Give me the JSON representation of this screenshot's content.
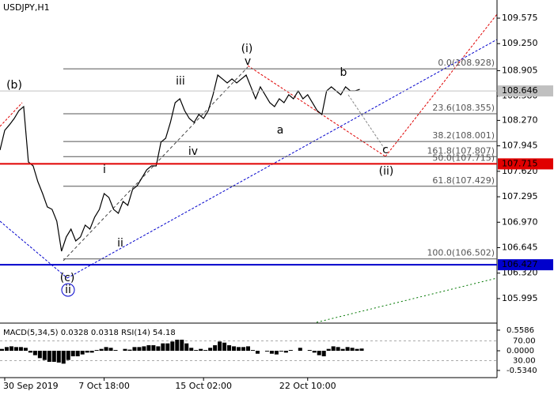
{
  "chart_data": [
    {
      "type": "line",
      "title": "USDJPY,H1",
      "x": [
        0,
        1,
        2,
        3,
        4,
        5,
        6,
        7,
        8,
        9,
        10,
        11,
        12,
        13,
        14,
        15,
        16,
        17,
        18,
        19,
        20,
        21,
        22,
        23,
        24,
        25,
        26,
        27,
        28,
        29,
        30,
        31,
        32,
        33,
        34,
        35,
        36,
        37,
        38,
        39,
        40,
        41,
        42,
        43,
        44,
        45,
        46,
        47,
        48,
        49,
        50,
        51,
        52,
        53,
        54,
        55,
        56,
        57,
        58,
        59,
        60,
        61,
        62,
        63,
        64,
        65,
        66,
        67,
        68,
        69,
        70,
        71,
        72,
        73,
        74,
        75,
        76
      ],
      "values": [
        107.891,
        108.143,
        108.214,
        108.294,
        108.395,
        108.446,
        107.74,
        107.689,
        107.487,
        107.336,
        107.165,
        107.134,
        106.983,
        106.6,
        106.782,
        106.882,
        106.731,
        106.782,
        106.933,
        106.882,
        107.034,
        107.134,
        107.336,
        107.286,
        107.134,
        107.084,
        107.235,
        107.185,
        107.387,
        107.437,
        107.538,
        107.639,
        107.689,
        107.689,
        107.992,
        108.042,
        108.244,
        108.496,
        108.546,
        108.395,
        108.294,
        108.244,
        108.345,
        108.294,
        108.395,
        108.597,
        108.849,
        108.799,
        108.748,
        108.799,
        108.748,
        108.799,
        108.849,
        108.698,
        108.546,
        108.698,
        108.597,
        108.496,
        108.446,
        108.546,
        108.496,
        108.597,
        108.546,
        108.647,
        108.546,
        108.597,
        108.496,
        108.395,
        108.345,
        108.647,
        108.698,
        108.647,
        108.597,
        108.698,
        108.647,
        108.647,
        108.667
      ],
      "color": "#000000",
      "xlim": [
        0,
        105
      ],
      "xticks": [
        {
          "value": 1,
          "label": "30 Sep 2019"
        },
        {
          "value": 22,
          "label": "7 Oct 18:00"
        },
        {
          "value": 43,
          "label": "15 Oct 02:00"
        },
        {
          "value": 65,
          "label": "22 Oct 10:00"
        }
      ],
      "ylim": [
        105.692,
        109.807
      ],
      "yticks": [
        109.575,
        {
          "value": 109.25,
          "label": "109.250"
        },
        108.905,
        {
          "value": 108.58,
          "label": "108.580"
        },
        {
          "value": 108.27,
          "label": "108.270"
        },
        107.945,
        {
          "value": 107.62,
          "label": "107.620"
        },
        107.295,
        {
          "value": 106.97,
          "label": "106.970"
        },
        106.645,
        {
          "value": 106.32,
          "label": "106.320"
        },
        105.995
      ],
      "grid": false,
      "fib_levels": [
        {
          "value": 108.928,
          "label": "0.0(108.928)"
        },
        {
          "value": 108.355,
          "label": "23.6(108.355)"
        },
        {
          "value": 108.001,
          "label": "38.2(108.001)"
        },
        {
          "value": 107.807,
          "label": "161.8(107.807)"
        },
        {
          "value": 107.715,
          "label": "50.0(107.715)"
        },
        {
          "value": 107.429,
          "label": "61.8(107.429)"
        },
        {
          "value": 106.502,
          "label": "100.0(106.502)"
        }
      ],
      "price_lines": [
        {
          "value": 108.646,
          "label": "108.646",
          "color": "#c0c0c0"
        },
        {
          "value": 107.715,
          "label": "107.715",
          "color": "#e00000"
        },
        {
          "value": 106.427,
          "label": "106.427",
          "color": "#0000cc"
        }
      ],
      "annotations": [
        {
          "text": "(b)",
          "color": "#e00000"
        },
        {
          "text": "(c)",
          "color": "#e00000"
        },
        {
          "text": "ii",
          "color": "#0000cc"
        },
        {
          "text": "i",
          "color": "#666666"
        },
        {
          "text": "ii",
          "color": "#666666"
        },
        {
          "text": "iii",
          "color": "#666666"
        },
        {
          "text": "iv",
          "color": "#666666"
        },
        {
          "text": "v",
          "color": "#666666"
        },
        {
          "text": "(i)",
          "color": "#e00000"
        },
        {
          "text": "a",
          "color": "#666666"
        },
        {
          "text": "b",
          "color": "#666666"
        },
        {
          "text": "c",
          "color": "#666666"
        },
        {
          "text": "(ii)",
          "color": "#e00000"
        }
      ]
    },
    {
      "type": "bar",
      "title": "MACD(5,34,5) 0.0328 0.0318 RSI(14) 54.18",
      "values": [
        0.05,
        0.1,
        0.12,
        0.1,
        0.1,
        0.08,
        -0.05,
        -0.12,
        -0.2,
        -0.25,
        -0.3,
        -0.3,
        -0.32,
        -0.35,
        -0.25,
        -0.15,
        -0.15,
        -0.1,
        -0.05,
        -0.05,
        0.02,
        0.05,
        0.1,
        0.08,
        0.02,
        0.0,
        0.05,
        0.03,
        0.1,
        0.1,
        0.12,
        0.15,
        0.15,
        0.12,
        0.2,
        0.2,
        0.25,
        0.3,
        0.3,
        0.2,
        0.08,
        0.02,
        0.05,
        0.02,
        0.08,
        0.15,
        0.25,
        0.22,
        0.15,
        0.12,
        0.1,
        0.1,
        0.12,
        0.02,
        -0.08,
        0.0,
        -0.02,
        -0.08,
        -0.1,
        -0.02,
        -0.05,
        0.02,
        0.0,
        0.08,
        0.0,
        0.02,
        -0.05,
        -0.12,
        -0.15,
        0.05,
        0.12,
        0.1,
        0.05,
        0.1,
        0.08,
        0.05,
        0.06
      ],
      "color": "#000000",
      "ylim": [
        -0.707,
        0.707
      ],
      "yticks": [
        0.5586,
        {
          "value": 0,
          "label": "0.0000"
        },
        {
          "value": -0.534,
          "label": "-0.5340"
        }
      ],
      "y2lim": [
        -2.8,
        102.8
      ],
      "y2ticks": [
        {
          "value": 70,
          "label": "70.00"
        },
        {
          "value": 30,
          "label": "30.00"
        }
      ]
    }
  ]
}
